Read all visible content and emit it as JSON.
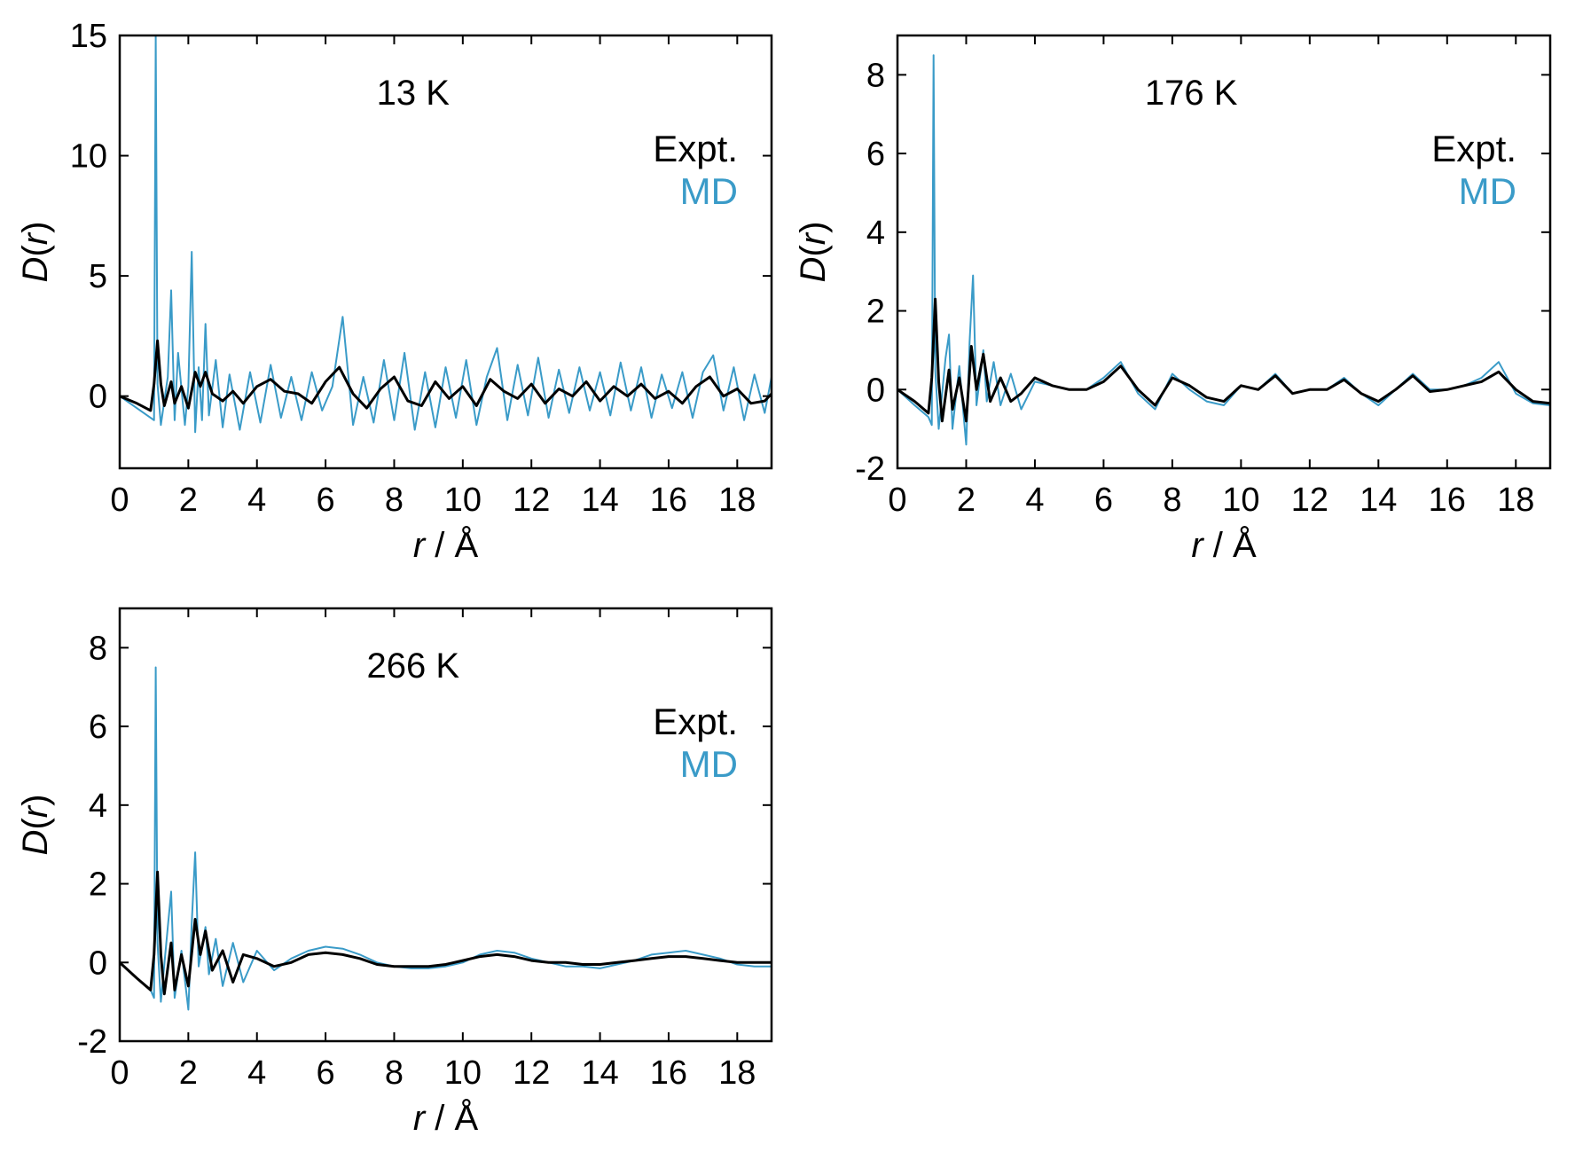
{
  "figure": {
    "series_names": [
      "Expt.",
      "MD"
    ],
    "colors": {
      "expt": "#000000",
      "md": "#3a9bc8",
      "axis": "#000000"
    },
    "xlabel_italic": "r",
    "xlabel_rest": " / Å",
    "ylabel_italic_D": "D",
    "ylabel_open": "(",
    "ylabel_italic_r": "r",
    "ylabel_close": ")"
  },
  "chart_data": [
    {
      "type": "line",
      "title": "13 K",
      "xlabel": "r / Å",
      "ylabel": "D(r)",
      "xlim": [
        0,
        19
      ],
      "ylim": [
        -3,
        15
      ],
      "xticks": [
        0,
        2,
        4,
        6,
        8,
        10,
        12,
        14,
        16,
        18
      ],
      "yticks": [
        0,
        5,
        10,
        15
      ],
      "legend": [
        "Expt.",
        "MD"
      ],
      "legend_position": "top-right",
      "series": [
        {
          "name": "Expt.",
          "color": "#000000",
          "x": [
            0,
            0.5,
            0.9,
            1.0,
            1.1,
            1.2,
            1.3,
            1.5,
            1.6,
            1.8,
            2.0,
            2.2,
            2.35,
            2.5,
            2.7,
            3.0,
            3.3,
            3.6,
            4.0,
            4.4,
            4.8,
            5.2,
            5.6,
            6.0,
            6.4,
            6.8,
            7.2,
            7.6,
            8.0,
            8.4,
            8.8,
            9.2,
            9.6,
            10.0,
            10.4,
            10.8,
            11.2,
            11.6,
            12.0,
            12.4,
            12.8,
            13.2,
            13.6,
            14.0,
            14.4,
            14.8,
            15.2,
            15.6,
            16.0,
            16.4,
            16.8,
            17.2,
            17.6,
            18.0,
            18.4,
            18.8,
            19.0
          ],
          "y": [
            0,
            -0.3,
            -0.6,
            0.5,
            2.3,
            0.5,
            -0.4,
            0.6,
            -0.3,
            0.4,
            -0.5,
            1.0,
            0.4,
            1.0,
            0.1,
            -0.2,
            0.2,
            -0.3,
            0.4,
            0.7,
            0.2,
            0.1,
            -0.3,
            0.6,
            1.2,
            0.1,
            -0.5,
            0.3,
            0.8,
            -0.2,
            -0.4,
            0.6,
            -0.1,
            0.4,
            -0.4,
            0.7,
            0.2,
            -0.1,
            0.5,
            -0.3,
            0.3,
            0.0,
            0.6,
            -0.2,
            0.4,
            0.0,
            0.5,
            -0.1,
            0.2,
            -0.3,
            0.4,
            0.8,
            0.0,
            0.3,
            -0.3,
            -0.2,
            0.1
          ]
        },
        {
          "name": "MD",
          "color": "#3a9bc8",
          "x": [
            0,
            0.5,
            0.9,
            1.0,
            1.05,
            1.1,
            1.2,
            1.4,
            1.5,
            1.6,
            1.7,
            1.9,
            2.0,
            2.1,
            2.2,
            2.3,
            2.4,
            2.5,
            2.6,
            2.8,
            3.0,
            3.2,
            3.5,
            3.8,
            4.1,
            4.4,
            4.7,
            5.0,
            5.3,
            5.6,
            5.9,
            6.2,
            6.5,
            6.8,
            7.1,
            7.4,
            7.7,
            8.0,
            8.3,
            8.6,
            8.9,
            9.2,
            9.5,
            9.8,
            10.1,
            10.4,
            10.7,
            11.0,
            11.3,
            11.6,
            11.9,
            12.2,
            12.5,
            12.8,
            13.1,
            13.4,
            13.7,
            14.0,
            14.3,
            14.6,
            14.9,
            15.2,
            15.5,
            15.8,
            16.1,
            16.4,
            16.7,
            17.0,
            17.3,
            17.6,
            17.9,
            18.2,
            18.5,
            18.8,
            19.0
          ],
          "y": [
            0,
            -0.5,
            -0.9,
            -1.0,
            15,
            0.5,
            -1.2,
            0.8,
            4.4,
            -1.0,
            1.8,
            -1.2,
            0.4,
            6.0,
            -1.5,
            1.2,
            -1.0,
            3.0,
            -0.8,
            1.5,
            -1.3,
            0.9,
            -1.4,
            1.0,
            -1.1,
            1.3,
            -0.9,
            0.8,
            -1.0,
            1.0,
            -0.6,
            0.4,
            3.3,
            -1.2,
            0.8,
            -1.1,
            1.5,
            -1.0,
            1.8,
            -1.4,
            1.0,
            -1.3,
            1.2,
            -0.9,
            1.5,
            -1.2,
            0.8,
            2.0,
            -1.0,
            1.3,
            -0.8,
            1.6,
            -0.9,
            1.1,
            -0.7,
            1.2,
            -0.6,
            1.0,
            -0.8,
            1.4,
            -0.6,
            1.2,
            -0.9,
            0.9,
            -0.5,
            1.0,
            -0.9,
            1.0,
            1.7,
            -0.6,
            1.2,
            -1.0,
            0.9,
            -0.7,
            0.8
          ]
        }
      ]
    },
    {
      "type": "line",
      "title": "176 K",
      "xlabel": "r / Å",
      "ylabel": "D(r)",
      "xlim": [
        0,
        19
      ],
      "ylim": [
        -2,
        9
      ],
      "xticks": [
        0,
        2,
        4,
        6,
        8,
        10,
        12,
        14,
        16,
        18
      ],
      "yticks": [
        -2,
        0,
        2,
        4,
        6,
        8
      ],
      "legend": [
        "Expt.",
        "MD"
      ],
      "legend_position": "top-right",
      "series": [
        {
          "name": "Expt.",
          "color": "#000000",
          "x": [
            0,
            0.5,
            0.9,
            1.0,
            1.1,
            1.2,
            1.3,
            1.5,
            1.6,
            1.8,
            2.0,
            2.15,
            2.3,
            2.5,
            2.7,
            3.0,
            3.3,
            3.6,
            4.0,
            4.5,
            5.0,
            5.5,
            6.0,
            6.5,
            7.0,
            7.5,
            8.0,
            8.5,
            9.0,
            9.5,
            10.0,
            10.5,
            11.0,
            11.5,
            12.0,
            12.5,
            13.0,
            13.5,
            14.0,
            14.5,
            15.0,
            15.5,
            16.0,
            16.5,
            17.0,
            17.5,
            18.0,
            18.5,
            19.0
          ],
          "y": [
            0,
            -0.3,
            -0.6,
            0.3,
            2.3,
            0.2,
            -0.8,
            0.5,
            -0.5,
            0.3,
            -0.8,
            1.1,
            0.0,
            0.9,
            -0.3,
            0.3,
            -0.3,
            -0.1,
            0.3,
            0.1,
            0.0,
            0.0,
            0.2,
            0.6,
            0.0,
            -0.4,
            0.3,
            0.1,
            -0.2,
            -0.3,
            0.1,
            0.0,
            0.35,
            -0.1,
            0.0,
            0.0,
            0.25,
            -0.1,
            -0.3,
            0.0,
            0.35,
            -0.05,
            0.0,
            0.1,
            0.2,
            0.45,
            0.0,
            -0.3,
            -0.35
          ]
        },
        {
          "name": "MD",
          "color": "#3a9bc8",
          "x": [
            0,
            0.5,
            0.9,
            1.0,
            1.05,
            1.1,
            1.2,
            1.4,
            1.5,
            1.6,
            1.8,
            2.0,
            2.1,
            2.2,
            2.3,
            2.5,
            2.6,
            2.8,
            3.0,
            3.3,
            3.6,
            4.0,
            4.5,
            5.0,
            5.5,
            6.0,
            6.5,
            7.0,
            7.5,
            8.0,
            8.5,
            9.0,
            9.5,
            10.0,
            10.5,
            11.0,
            11.5,
            12.0,
            12.5,
            13.0,
            13.5,
            14.0,
            14.5,
            15.0,
            15.5,
            16.0,
            16.5,
            17.0,
            17.5,
            18.0,
            18.5,
            19.0
          ],
          "y": [
            0,
            -0.4,
            -0.7,
            -0.9,
            8.5,
            0.5,
            -1.0,
            0.8,
            1.4,
            -1.0,
            0.6,
            -1.4,
            1.2,
            2.9,
            -0.4,
            1.0,
            -0.3,
            0.7,
            -0.4,
            0.4,
            -0.5,
            0.2,
            0.1,
            0.0,
            0.0,
            0.3,
            0.7,
            -0.1,
            -0.5,
            0.4,
            0.0,
            -0.3,
            -0.4,
            0.1,
            0.0,
            0.4,
            -0.1,
            0.0,
            0.0,
            0.3,
            -0.1,
            -0.4,
            0.0,
            0.4,
            0.0,
            0.0,
            0.1,
            0.3,
            0.7,
            -0.1,
            -0.35,
            -0.4
          ]
        }
      ]
    },
    {
      "type": "line",
      "title": "266 K",
      "xlabel": "r / Å",
      "ylabel": "D(r)",
      "xlim": [
        0,
        19
      ],
      "ylim": [
        -2,
        9
      ],
      "xticks": [
        0,
        2,
        4,
        6,
        8,
        10,
        12,
        14,
        16,
        18
      ],
      "yticks": [
        -2,
        0,
        2,
        4,
        6,
        8
      ],
      "legend": [
        "Expt.",
        "MD"
      ],
      "legend_position": "top-right",
      "series": [
        {
          "name": "Expt.",
          "color": "#000000",
          "x": [
            0,
            0.5,
            0.9,
            1.0,
            1.1,
            1.2,
            1.3,
            1.5,
            1.6,
            1.8,
            2.0,
            2.2,
            2.35,
            2.5,
            2.7,
            3.0,
            3.3,
            3.6,
            4.0,
            4.5,
            5.0,
            5.5,
            6.0,
            6.5,
            7.0,
            7.5,
            8.0,
            8.5,
            9.0,
            9.5,
            10.0,
            10.5,
            11.0,
            11.5,
            12.0,
            12.5,
            13.0,
            13.5,
            14.0,
            14.5,
            15.0,
            15.5,
            16.0,
            16.5,
            17.0,
            17.5,
            18.0,
            18.5,
            19.0
          ],
          "y": [
            0,
            -0.4,
            -0.7,
            0.2,
            2.3,
            0.2,
            -0.8,
            0.5,
            -0.7,
            0.2,
            -0.6,
            1.1,
            0.2,
            0.8,
            -0.2,
            0.3,
            -0.5,
            0.2,
            0.1,
            -0.1,
            0.0,
            0.2,
            0.25,
            0.2,
            0.1,
            -0.05,
            -0.1,
            -0.1,
            -0.1,
            -0.05,
            0.05,
            0.15,
            0.2,
            0.15,
            0.05,
            0.0,
            0.0,
            -0.05,
            -0.05,
            0.0,
            0.05,
            0.1,
            0.15,
            0.15,
            0.1,
            0.05,
            0.0,
            0.0,
            0.0
          ]
        },
        {
          "name": "MD",
          "color": "#3a9bc8",
          "x": [
            0,
            0.5,
            0.9,
            1.0,
            1.05,
            1.1,
            1.2,
            1.4,
            1.5,
            1.6,
            1.8,
            2.0,
            2.1,
            2.2,
            2.3,
            2.5,
            2.6,
            2.8,
            3.0,
            3.3,
            3.6,
            4.0,
            4.5,
            5.0,
            5.5,
            6.0,
            6.5,
            7.0,
            7.5,
            8.0,
            8.5,
            9.0,
            9.5,
            10.0,
            10.5,
            11.0,
            11.5,
            12.0,
            12.5,
            13.0,
            13.5,
            14.0,
            14.5,
            15.0,
            15.5,
            16.0,
            16.5,
            17.0,
            17.5,
            18.0,
            18.5,
            19.0
          ],
          "y": [
            0,
            -0.4,
            -0.7,
            -0.9,
            7.5,
            0.5,
            -1.0,
            0.9,
            1.8,
            -0.9,
            0.3,
            -1.2,
            1.0,
            2.8,
            -0.1,
            0.9,
            -0.3,
            0.6,
            -0.6,
            0.5,
            -0.5,
            0.3,
            -0.2,
            0.1,
            0.3,
            0.4,
            0.35,
            0.2,
            0.0,
            -0.1,
            -0.15,
            -0.15,
            -0.1,
            0.0,
            0.2,
            0.3,
            0.25,
            0.1,
            0.0,
            -0.1,
            -0.1,
            -0.15,
            -0.05,
            0.05,
            0.2,
            0.25,
            0.3,
            0.2,
            0.1,
            -0.05,
            -0.1,
            -0.1
          ]
        }
      ]
    }
  ]
}
